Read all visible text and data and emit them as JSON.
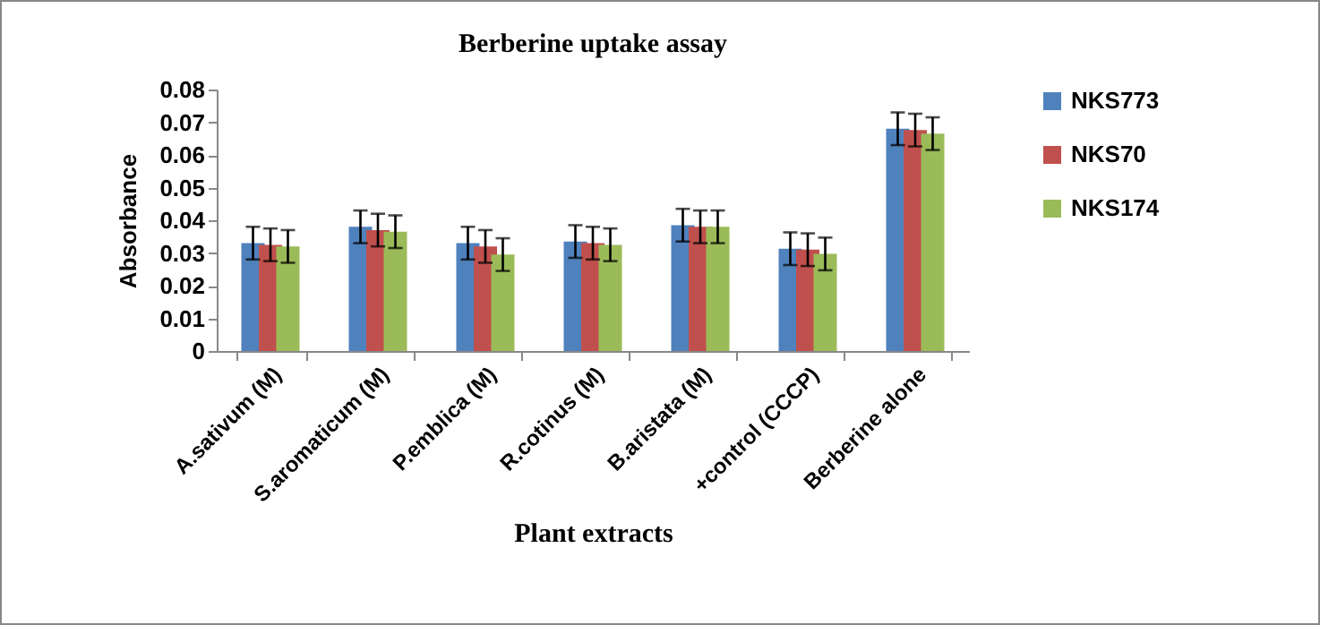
{
  "chart_data": {
    "type": "bar",
    "title": "Berberine  uptake assay",
    "xlabel": "Plant extracts",
    "ylabel": "Absorbance",
    "categories": [
      "A.sativum (M)",
      "S.aromaticum (M)",
      "P.emblica (M)",
      "R.cotinus (M)",
      "B.aristata (M)",
      "+control (CCCP)",
      "Berberine alone"
    ],
    "series": [
      {
        "name": "NKS773",
        "color": "#4f81bd",
        "values": [
          0.033,
          0.038,
          0.033,
          0.0335,
          0.0385,
          0.0313,
          0.068
        ],
        "errors": [
          0.005,
          0.005,
          0.005,
          0.005,
          0.005,
          0.005,
          0.005
        ]
      },
      {
        "name": "NKS70",
        "color": "#c0504d",
        "values": [
          0.0325,
          0.037,
          0.032,
          0.033,
          0.038,
          0.031,
          0.0676
        ],
        "errors": [
          0.005,
          0.005,
          0.005,
          0.005,
          0.005,
          0.005,
          0.005
        ]
      },
      {
        "name": "NKS174",
        "color": "#9bbb59",
        "values": [
          0.032,
          0.0365,
          0.0295,
          0.0325,
          0.038,
          0.0297,
          0.0665
        ],
        "errors": [
          0.005,
          0.005,
          0.005,
          0.005,
          0.005,
          0.005,
          0.005
        ]
      }
    ],
    "ylim": [
      0,
      0.08
    ],
    "yticks": [
      0,
      0.01,
      0.02,
      0.03,
      0.04,
      0.05,
      0.06,
      0.07,
      0.08
    ],
    "grid": false,
    "legend": "right"
  }
}
